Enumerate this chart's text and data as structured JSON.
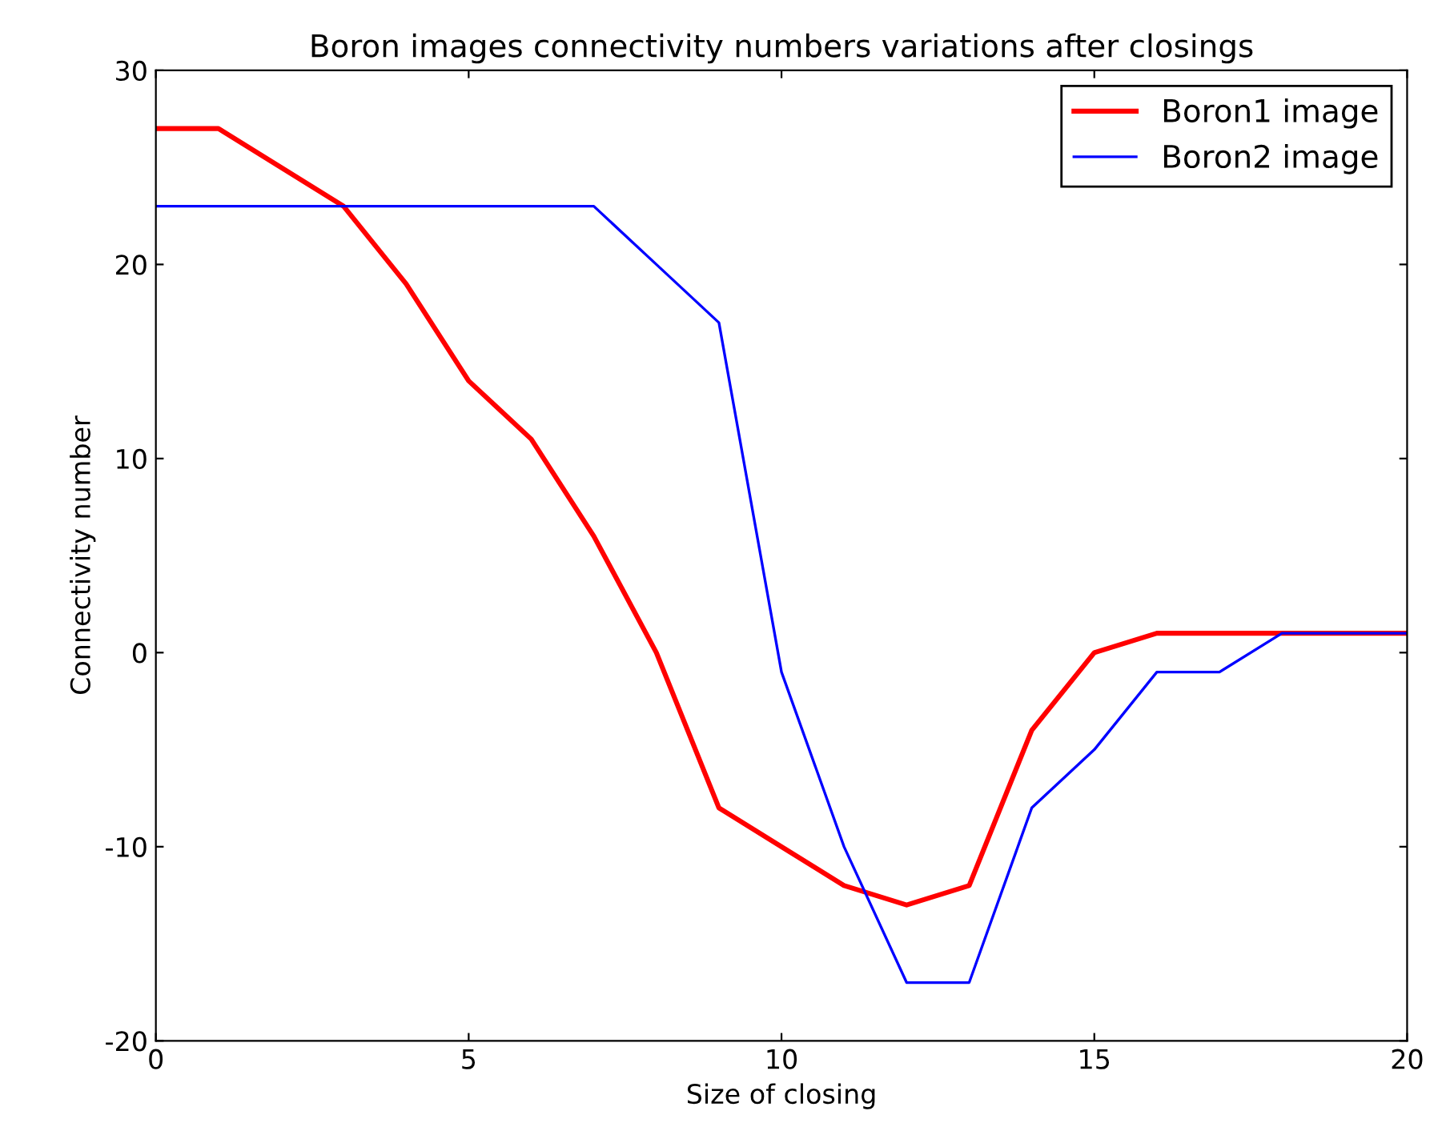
{
  "chart_data": {
    "type": "line",
    "title": "Boron images connectivity numbers variations after closings",
    "xlabel": "Size of closing",
    "ylabel": "Connectivity number",
    "x": [
      0,
      1,
      2,
      3,
      4,
      5,
      6,
      7,
      8,
      9,
      10,
      11,
      12,
      13,
      14,
      15,
      16,
      17,
      18,
      19,
      20
    ],
    "series": [
      {
        "name": "Boron1 image",
        "color": "#ff0000",
        "values": [
          27,
          27,
          25,
          23,
          19,
          14,
          11,
          6,
          0,
          -8,
          -10,
          -12,
          -13,
          -12,
          -4,
          0,
          1,
          1,
          1,
          1,
          1
        ]
      },
      {
        "name": "Boron2 image",
        "color": "#0000ff",
        "values": [
          23,
          23,
          23,
          23,
          23,
          23,
          23,
          23,
          20,
          17,
          -1,
          -10,
          -17,
          -17,
          -8,
          -5,
          -1,
          -1,
          1,
          1,
          1
        ]
      }
    ],
    "xlim": [
      0,
      20
    ],
    "ylim": [
      -20,
      30
    ],
    "xticks": [
      0,
      5,
      10,
      15,
      20
    ],
    "yticks": [
      -20,
      -10,
      0,
      10,
      20,
      30
    ],
    "grid": false,
    "legend": "top right",
    "marker": "none",
    "line_style": "solid"
  }
}
